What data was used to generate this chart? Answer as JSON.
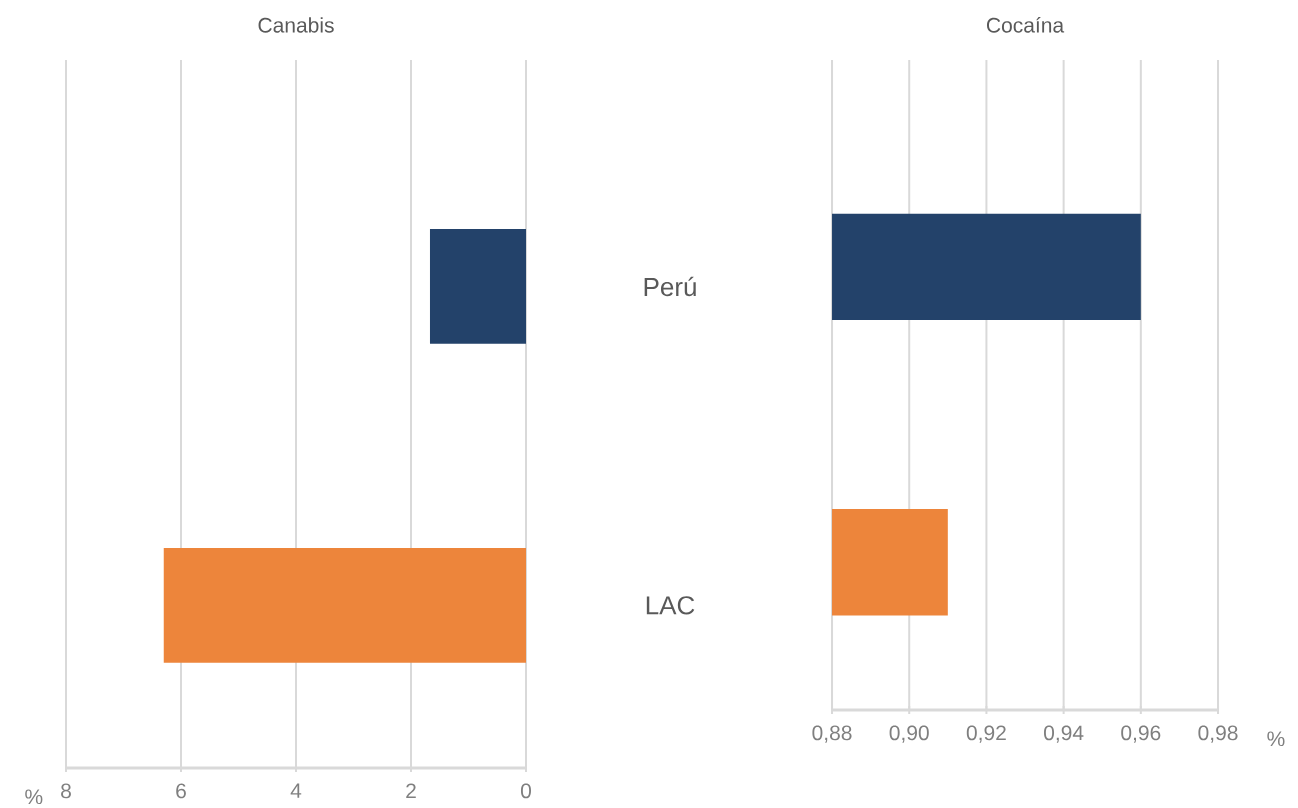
{
  "chart_data": [
    {
      "type": "bar",
      "orientation": "horizontal",
      "title": "Canabis",
      "xlabel": "%",
      "categories": [
        "Perú",
        "LAC"
      ],
      "values": [
        1.67,
        6.3
      ],
      "colors": [
        "#23426a",
        "#ed853b"
      ],
      "xlim": [
        8,
        0
      ],
      "xticks": [
        8,
        6,
        4,
        2,
        0
      ],
      "grid": "x"
    },
    {
      "type": "bar",
      "orientation": "horizontal",
      "title": "Cocaína",
      "xlabel": "%",
      "categories": [
        null,
        null
      ],
      "values": [
        0.96,
        0.91
      ],
      "colors": [
        "#23426a",
        "#ed853b"
      ],
      "xlim": [
        0.88,
        0.98
      ],
      "xticks": [
        {
          "value": 0.88,
          "label": "0,88"
        },
        {
          "value": 0.9,
          "label": "0,90"
        },
        {
          "value": 0.92,
          "label": "0,92"
        },
        {
          "value": 0.94,
          "label": "0,94"
        },
        {
          "value": 0.96,
          "label": "0,96"
        },
        {
          "value": 0.98,
          "label": "0,98"
        }
      ],
      "grid": "x",
      "tick_labels": "x"
    }
  ]
}
